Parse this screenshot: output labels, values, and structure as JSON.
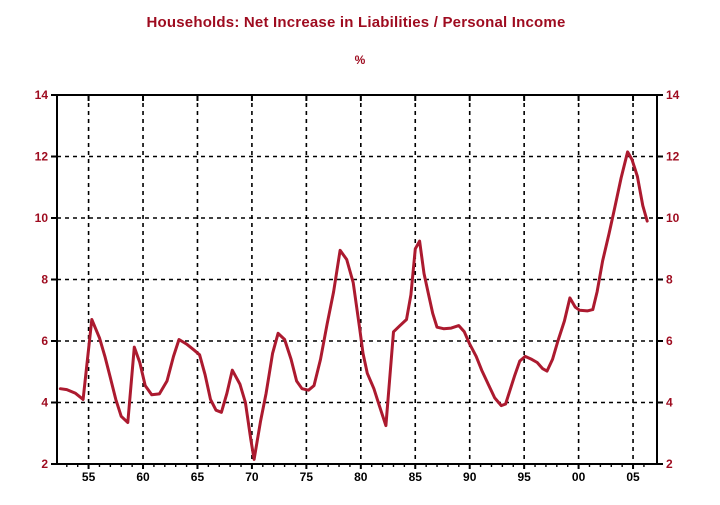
{
  "chart_data": {
    "type": "line",
    "title": "Households: Net Increase in Liabilities / Personal Income",
    "unit_label": "%",
    "xlabel": "",
    "ylabel": "",
    "legend": "none",
    "grid": "dashed horizontal and vertical",
    "ylim": [
      2,
      14
    ],
    "xlim": [
      1952.1,
      2007.2
    ],
    "y_ticks": [
      2,
      4,
      6,
      8,
      10,
      12,
      14
    ],
    "x_ticks": [
      {
        "year": 1955,
        "label": "55"
      },
      {
        "year": 1960,
        "label": "60"
      },
      {
        "year": 1965,
        "label": "65"
      },
      {
        "year": 1970,
        "label": "70"
      },
      {
        "year": 1975,
        "label": "75"
      },
      {
        "year": 1980,
        "label": "80"
      },
      {
        "year": 1985,
        "label": "85"
      },
      {
        "year": 1990,
        "label": "90"
      },
      {
        "year": 1995,
        "label": "95"
      },
      {
        "year": 2000,
        "label": "00"
      },
      {
        "year": 2005,
        "label": "05"
      }
    ],
    "minor_x_ticks": {
      "start": 1953,
      "end": 2006,
      "step": 1
    },
    "colors": {
      "title": "#9E0B1F",
      "y_tick_label": "#9E0B1F",
      "x_tick_label": "#000000",
      "line": "#AC1A2F",
      "grid": "#000000",
      "axis": "#000000",
      "background": "#FFFFFF"
    },
    "series": [
      {
        "name": "Households: Net Increase in Liabilities / Personal Income",
        "points": [
          [
            1952.4,
            4.45
          ],
          [
            1953.0,
            4.42
          ],
          [
            1953.8,
            4.3
          ],
          [
            1954.5,
            4.1
          ],
          [
            1955.3,
            6.7
          ],
          [
            1956.0,
            6.1
          ],
          [
            1956.5,
            5.5
          ],
          [
            1957.0,
            4.8
          ],
          [
            1957.5,
            4.1
          ],
          [
            1958.0,
            3.55
          ],
          [
            1958.6,
            3.35
          ],
          [
            1959.2,
            5.8
          ],
          [
            1959.7,
            5.3
          ],
          [
            1960.2,
            4.55
          ],
          [
            1960.8,
            4.25
          ],
          [
            1961.5,
            4.28
          ],
          [
            1962.2,
            4.7
          ],
          [
            1962.8,
            5.5
          ],
          [
            1963.3,
            6.05
          ],
          [
            1964.0,
            5.9
          ],
          [
            1964.7,
            5.7
          ],
          [
            1965.2,
            5.55
          ],
          [
            1965.7,
            4.9
          ],
          [
            1966.2,
            4.1
          ],
          [
            1966.7,
            3.75
          ],
          [
            1967.2,
            3.68
          ],
          [
            1967.7,
            4.3
          ],
          [
            1968.2,
            5.05
          ],
          [
            1968.9,
            4.6
          ],
          [
            1969.4,
            4.0
          ],
          [
            1969.9,
            2.8
          ],
          [
            1970.2,
            2.15
          ],
          [
            1970.8,
            3.4
          ],
          [
            1971.3,
            4.3
          ],
          [
            1971.9,
            5.6
          ],
          [
            1972.4,
            6.25
          ],
          [
            1973.0,
            6.05
          ],
          [
            1973.6,
            5.4
          ],
          [
            1974.1,
            4.7
          ],
          [
            1974.6,
            4.45
          ],
          [
            1975.2,
            4.4
          ],
          [
            1975.7,
            4.55
          ],
          [
            1976.3,
            5.4
          ],
          [
            1976.9,
            6.55
          ],
          [
            1977.5,
            7.6
          ],
          [
            1978.1,
            8.95
          ],
          [
            1978.7,
            8.65
          ],
          [
            1979.3,
            7.9
          ],
          [
            1979.9,
            6.4
          ],
          [
            1980.2,
            5.6
          ],
          [
            1980.6,
            4.95
          ],
          [
            1981.2,
            4.45
          ],
          [
            1981.7,
            3.9
          ],
          [
            1982.3,
            3.25
          ],
          [
            1983.0,
            6.3
          ],
          [
            1983.6,
            6.5
          ],
          [
            1984.2,
            6.7
          ],
          [
            1984.6,
            7.5
          ],
          [
            1985.0,
            9.0
          ],
          [
            1985.4,
            9.25
          ],
          [
            1985.8,
            8.2
          ],
          [
            1986.2,
            7.55
          ],
          [
            1986.6,
            6.9
          ],
          [
            1987.0,
            6.45
          ],
          [
            1987.6,
            6.4
          ],
          [
            1988.3,
            6.42
          ],
          [
            1989.0,
            6.5
          ],
          [
            1989.5,
            6.3
          ],
          [
            1990.0,
            5.9
          ],
          [
            1990.6,
            5.5
          ],
          [
            1991.1,
            5.05
          ],
          [
            1991.7,
            4.6
          ],
          [
            1992.3,
            4.15
          ],
          [
            1992.9,
            3.9
          ],
          [
            1993.3,
            3.95
          ],
          [
            1993.7,
            4.4
          ],
          [
            1994.1,
            4.85
          ],
          [
            1994.6,
            5.35
          ],
          [
            1995.1,
            5.5
          ],
          [
            1995.7,
            5.4
          ],
          [
            1996.2,
            5.3
          ],
          [
            1996.7,
            5.1
          ],
          [
            1997.1,
            5.02
          ],
          [
            1997.6,
            5.4
          ],
          [
            1998.1,
            6.0
          ],
          [
            1998.7,
            6.65
          ],
          [
            1999.2,
            7.4
          ],
          [
            1999.7,
            7.1
          ],
          [
            2000.1,
            7.0
          ],
          [
            2000.8,
            6.98
          ],
          [
            2001.3,
            7.02
          ],
          [
            2001.7,
            7.6
          ],
          [
            2002.2,
            8.6
          ],
          [
            2002.8,
            9.5
          ],
          [
            2003.3,
            10.3
          ],
          [
            2003.9,
            11.3
          ],
          [
            2004.5,
            12.15
          ],
          [
            2004.9,
            11.9
          ],
          [
            2005.4,
            11.35
          ],
          [
            2005.9,
            10.4
          ],
          [
            2006.3,
            9.9
          ]
        ]
      }
    ]
  }
}
